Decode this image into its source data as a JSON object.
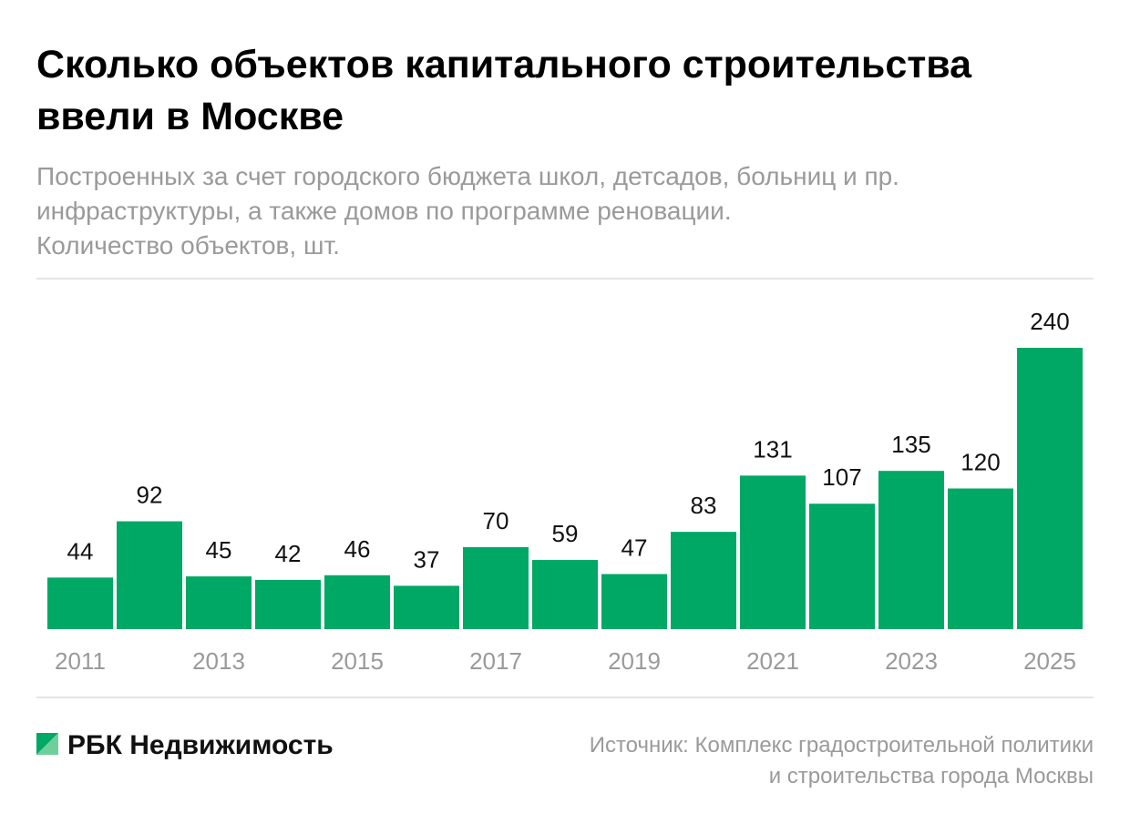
{
  "chart_data": {
    "type": "bar",
    "title": [
      "Сколько объектов капитального строительства",
      "ввели в Москве"
    ],
    "subtitle": [
      "Построенных за счет городского бюджета школ, детсадов, больниц и пр.",
      "инфраструктуры, а также домов по программе реновации.",
      "Количество объектов, шт."
    ],
    "categories": [
      "2011",
      null,
      "2013",
      null,
      "2015",
      null,
      "2017",
      null,
      "2019",
      null,
      "2021",
      null,
      "2023",
      null,
      "2025"
    ],
    "values": [
      44,
      92,
      45,
      42,
      46,
      37,
      70,
      59,
      47,
      83,
      131,
      107,
      135,
      120,
      240
    ],
    "color": "#00a865",
    "brand": "РБК Недвижимость",
    "source": [
      "Источник: Комплекс градостроительной политики",
      "и строительства города Москвы"
    ]
  }
}
